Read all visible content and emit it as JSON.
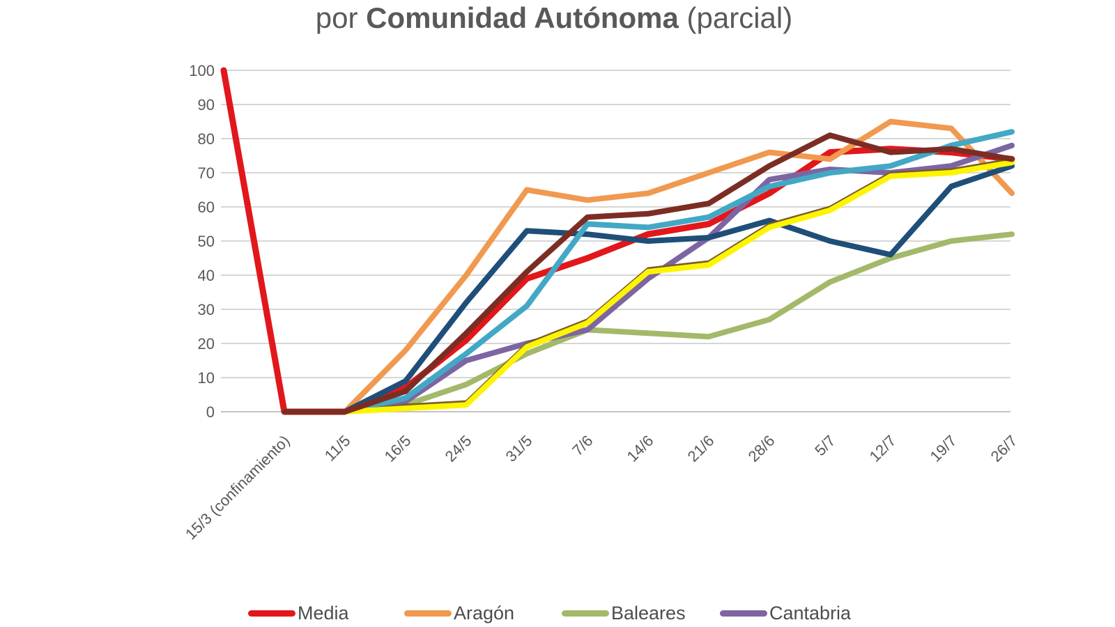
{
  "title": {
    "pre": "por ",
    "bold": "Comunidad Autónoma",
    "post": " (parcial)"
  },
  "legend": {
    "items": [
      {
        "label": "Media",
        "color": "#e2171c"
      },
      {
        "label": "Aragón",
        "color": "#f0994f"
      },
      {
        "label": "Baleares",
        "color": "#a3b96a"
      },
      {
        "label": "Cantabria",
        "color": "#7d65a2"
      }
    ]
  },
  "chart_data": {
    "type": "line",
    "title": "por Comunidad Autónoma (parcial)",
    "xlabel": "",
    "ylabel": "",
    "ylim": [
      0,
      100
    ],
    "y_tick_step": 10,
    "y_tick_labels": [
      "0",
      "10",
      "20",
      "30",
      "40",
      "50",
      "60",
      "70",
      "80",
      "90",
      "100"
    ],
    "grid": true,
    "legend_position": "bottom",
    "categories": [
      "",
      "15/3 (confinamiento)",
      "11/5",
      "16/5",
      "24/5",
      "31/5",
      "7/6",
      "14/6",
      "21/6",
      "28/6",
      "5/7",
      "12/7",
      "19/7",
      "26/7"
    ],
    "series": [
      {
        "name": "Media",
        "id": "media",
        "in_legend": true,
        "color": "#e2171c",
        "width": 9,
        "values": [
          100,
          0,
          0,
          7,
          21,
          39,
          45,
          52,
          55,
          64,
          76,
          77,
          76,
          74
        ]
      },
      {
        "name": "Aragón",
        "id": "aragon",
        "in_legend": true,
        "color": "#f0994f",
        "width": 8,
        "values": [
          null,
          0,
          0,
          18,
          40,
          65,
          62,
          64,
          70,
          76,
          74,
          85,
          83,
          64
        ]
      },
      {
        "name": "Baleares",
        "id": "baleares",
        "in_legend": true,
        "color": "#a3b96a",
        "width": 8,
        "values": [
          null,
          0,
          0,
          2,
          8,
          17,
          24,
          23,
          22,
          27,
          38,
          45,
          50,
          52
        ]
      },
      {
        "name": "Cantabria",
        "id": "cantabria",
        "in_legend": true,
        "color": "#7d65a2",
        "width": 8,
        "values": [
          null,
          0,
          0,
          3,
          15,
          20,
          24,
          39,
          51,
          68,
          71,
          70,
          72,
          78
        ]
      },
      {
        "name": "",
        "id": "serie-azul-oscuro",
        "in_legend": false,
        "color": "#1f4e79",
        "width": 8,
        "values": [
          null,
          0,
          0,
          9,
          32,
          53,
          52,
          50,
          51,
          56,
          50,
          46,
          66,
          72
        ]
      },
      {
        "name": "",
        "id": "serie-turquesa",
        "in_legend": false,
        "color": "#42a8c5",
        "width": 8,
        "values": [
          null,
          0,
          0,
          4,
          17,
          31,
          55,
          54,
          57,
          66,
          70,
          72,
          78,
          82
        ]
      },
      {
        "name": "",
        "id": "serie-marron-fino",
        "in_legend": false,
        "color": "#7a5c2e",
        "width": 3.5,
        "values": [
          null,
          0,
          0,
          2,
          3,
          20,
          27,
          42,
          44,
          55,
          60,
          70,
          71,
          74
        ]
      },
      {
        "name": "",
        "id": "serie-amarillo",
        "in_legend": false,
        "color": "#fdf500",
        "width": 8,
        "values": [
          null,
          0,
          0,
          1,
          2,
          19,
          26,
          41,
          43,
          54,
          59,
          69,
          70,
          73
        ]
      },
      {
        "name": "",
        "id": "serie-granate",
        "in_legend": false,
        "color": "#7c2d23",
        "width": 8,
        "values": [
          null,
          0,
          0,
          6,
          23,
          41,
          57,
          58,
          61,
          72,
          81,
          76,
          77,
          74
        ]
      }
    ]
  }
}
